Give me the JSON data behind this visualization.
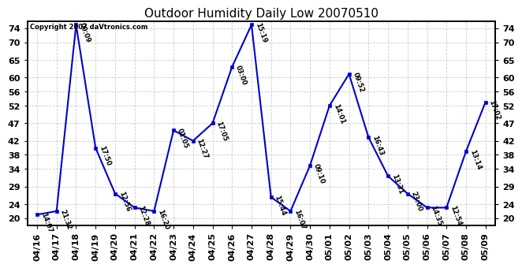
{
  "title": "Outdoor Humidity Daily Low 20070510",
  "copyright": "Copyright 2007 daVtronics.com",
  "x_labels": [
    "04/16",
    "04/17",
    "04/18",
    "04/19",
    "04/20",
    "04/21",
    "04/22",
    "04/23",
    "04/24",
    "04/25",
    "04/26",
    "04/27",
    "04/28",
    "04/29",
    "04/30",
    "05/01",
    "05/02",
    "05/03",
    "05/04",
    "05/05",
    "05/06",
    "05/07",
    "05/08",
    "05/09"
  ],
  "y_values": [
    21,
    22,
    75,
    40,
    27,
    23,
    22,
    45,
    42,
    47,
    63,
    75,
    26,
    22,
    35,
    52,
    61,
    43,
    32,
    27,
    23,
    23,
    39,
    53
  ],
  "point_labels": [
    "14:07",
    "21:32",
    "00:09",
    "17:50",
    "12:56",
    "12:28",
    "16:20",
    "01:05",
    "12:27",
    "17:05",
    "03:00",
    "15:19",
    "15:44",
    "16:07",
    "09:10",
    "14:01",
    "09:52",
    "16:43",
    "13:31",
    "23:00",
    "14:35",
    "12:54",
    "13:14",
    "17:02"
  ],
  "ylim": [
    18,
    76
  ],
  "y_ticks": [
    20,
    24,
    29,
    34,
    38,
    42,
    47,
    52,
    56,
    60,
    65,
    70,
    74
  ],
  "line_color": "#0000cc",
  "marker_color": "#0000cc",
  "bg_color": "#ffffff",
  "grid_color": "#cccccc",
  "title_fontsize": 11,
  "tick_fontsize": 8,
  "annot_fontsize": 6,
  "copyright_fontsize": 6
}
